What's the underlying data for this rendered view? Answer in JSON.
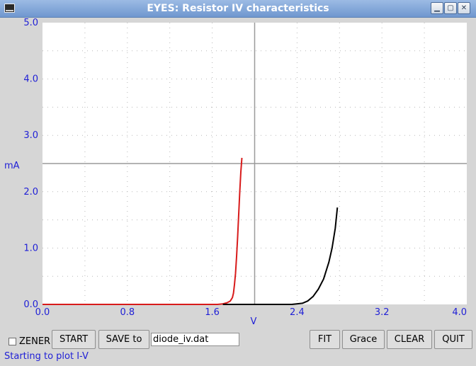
{
  "window": {
    "title": "EYES: Resistor IV characteristics",
    "buttons": [
      "minimize-icon",
      "maximize-icon",
      "close-icon"
    ]
  },
  "chart_data": {
    "type": "line",
    "xlabel": "V",
    "ylabel": "mA",
    "xlim": [
      0.0,
      4.0
    ],
    "ylim": [
      0.0,
      5.0
    ],
    "x_ticks": [
      "0.0",
      "0.8",
      "1.6",
      "2.4",
      "3.2",
      "4.0"
    ],
    "y_ticks": [
      "0.0",
      "1.0",
      "2.0",
      "3.0",
      "4.0",
      "5.0"
    ],
    "grid": "dotted",
    "cursor": {
      "x": 2.0,
      "y": 2.5
    },
    "series": [
      {
        "color": "#d81b1b",
        "x": [
          0.0,
          1.5,
          1.65,
          1.7,
          1.74,
          1.77,
          1.79,
          1.8,
          1.81,
          1.82,
          1.83,
          1.84,
          1.85,
          1.86,
          1.87,
          1.88
        ],
        "y": [
          0.0,
          0.0,
          0.0,
          0.01,
          0.03,
          0.06,
          0.12,
          0.2,
          0.35,
          0.55,
          0.85,
          1.2,
          1.6,
          2.0,
          2.35,
          2.6
        ]
      },
      {
        "color": "#000000",
        "x": [
          1.7,
          2.35,
          2.45,
          2.5,
          2.55,
          2.6,
          2.65,
          2.7,
          2.73,
          2.76,
          2.78
        ],
        "y": [
          0.0,
          0.0,
          0.02,
          0.06,
          0.14,
          0.27,
          0.45,
          0.75,
          1.0,
          1.35,
          1.72
        ]
      }
    ]
  },
  "controls": {
    "zener_label": "ZENER",
    "zener_checked": false,
    "start_label": "START",
    "save_label": "SAVE to",
    "filename_value": "diode_iv.dat",
    "fit_label": "FIT",
    "grace_label": "Grace",
    "clear_label": "CLEAR",
    "quit_label": "QUIT"
  },
  "status": "Starting to plot I-V",
  "colors": {
    "axis_text": "#1f1fd6",
    "background": "#d6d6d6",
    "titlebar": "#7ea3d6"
  }
}
